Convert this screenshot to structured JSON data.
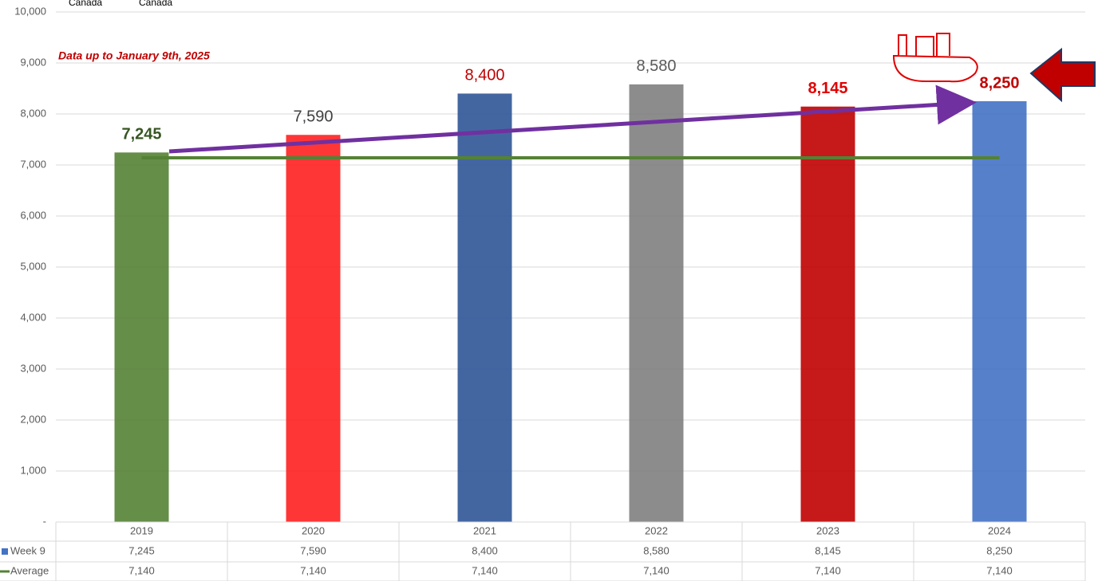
{
  "chart_data": {
    "type": "bar",
    "header_labels": [
      "Canada",
      "Canada"
    ],
    "annotation": "Data up to January 9th, 2025",
    "categories": [
      "2019",
      "2020",
      "2021",
      "2022",
      "2023",
      "2024"
    ],
    "series": [
      {
        "name": "Week 9",
        "color": "#4472c4",
        "bar_colors": [
          "#548235",
          "#ff2020",
          "#2f5597",
          "#7f7f7f",
          "#c00000",
          "#4472c4"
        ],
        "label_colors": [
          "#375623",
          "#404040",
          "#c00000",
          "#595959",
          "#e00000",
          "#c00000"
        ],
        "values": [
          7245,
          7590,
          8400,
          8580,
          8145,
          8250
        ],
        "value_labels": [
          "7,245",
          "7,590",
          "8,400",
          "8,580",
          "8,145",
          "8,250"
        ]
      },
      {
        "name": "Average",
        "type": "line",
        "color": "#548235",
        "values": [
          7140,
          7140,
          7140,
          7140,
          7140,
          7140
        ],
        "value_labels": [
          "7,140",
          "7,140",
          "7,140",
          "7,140",
          "7,140",
          "7,140"
        ]
      }
    ],
    "ylim": [
      0,
      10000
    ],
    "yticks": [
      {
        "value": 0,
        "label": "-"
      },
      {
        "value": 1000,
        "label": "1,000"
      },
      {
        "value": 2000,
        "label": "2,000"
      },
      {
        "value": 3000,
        "label": "3,000"
      },
      {
        "value": 4000,
        "label": "4,000"
      },
      {
        "value": 5000,
        "label": "5,000"
      },
      {
        "value": 6000,
        "label": "6,000"
      },
      {
        "value": 7000,
        "label": "7,000"
      },
      {
        "value": 8000,
        "label": "8,000"
      },
      {
        "value": 9000,
        "label": "9,000"
      },
      {
        "value": 10000,
        "label": "10,000"
      }
    ],
    "grid": true
  }
}
